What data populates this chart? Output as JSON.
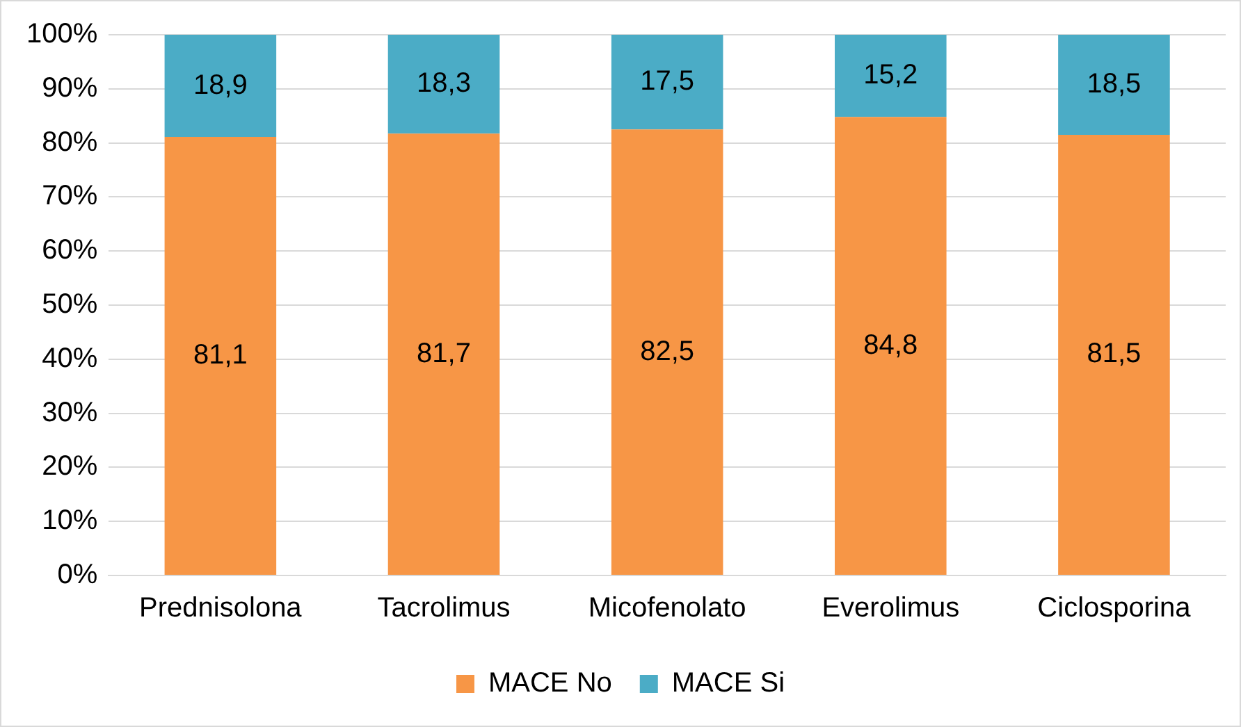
{
  "chart_data": {
    "type": "bar",
    "stacked": true,
    "categories": [
      "Prednisolona",
      "Tacrolimus",
      "Micofenolato",
      "Everolimus",
      "Ciclosporina"
    ],
    "series": [
      {
        "name": "MACE No",
        "color": "#f79646",
        "values": [
          81.1,
          81.7,
          82.5,
          84.8,
          81.5
        ],
        "value_labels": [
          "81,1",
          "81,7",
          "82,5",
          "84,8",
          "81,5"
        ]
      },
      {
        "name": "MACE Si",
        "color": "#4bacc6",
        "values": [
          18.9,
          18.3,
          17.5,
          15.2,
          18.5
        ],
        "value_labels": [
          "18,9",
          "18,3",
          "17,5",
          "15,2",
          "18,5"
        ]
      }
    ],
    "ylim": [
      0,
      100
    ],
    "yticks": [
      {
        "value": 0,
        "label": "0%"
      },
      {
        "value": 10,
        "label": "10%"
      },
      {
        "value": 20,
        "label": "20%"
      },
      {
        "value": 30,
        "label": "30%"
      },
      {
        "value": 40,
        "label": "40%"
      },
      {
        "value": 50,
        "label": "50%"
      },
      {
        "value": 60,
        "label": "60%"
      },
      {
        "value": 70,
        "label": "70%"
      },
      {
        "value": 80,
        "label": "80%"
      },
      {
        "value": 90,
        "label": "90%"
      },
      {
        "value": 100,
        "label": "100%"
      }
    ],
    "grid": "y",
    "legend": "bottom"
  }
}
